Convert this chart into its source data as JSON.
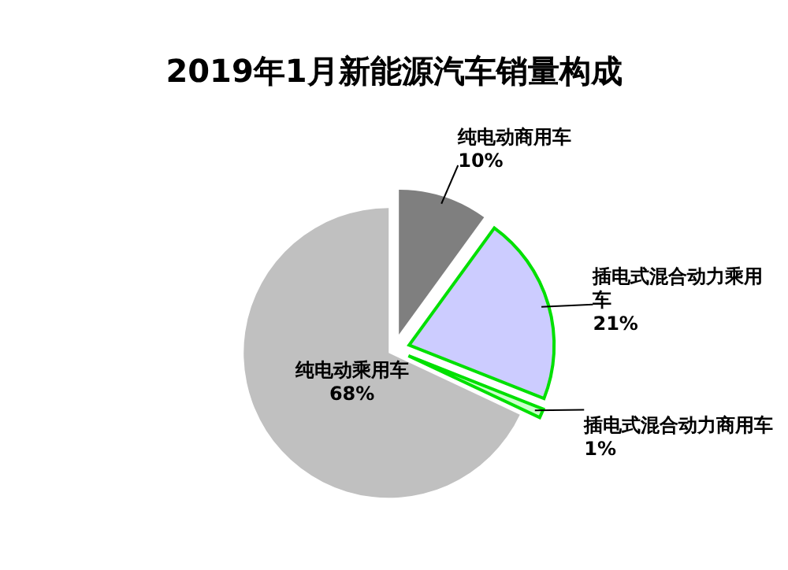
{
  "chart_data": {
    "type": "pie",
    "title": "2019年1月新能源汽车销量构成",
    "categories": [
      "纯电动商用车",
      "插电式混合动力乘用车",
      "插电式混合动力商用车",
      "纯电动乘用车"
    ],
    "values": [
      10,
      21,
      1,
      68
    ],
    "value_labels": [
      "10%",
      "21%",
      "1%",
      "68%"
    ],
    "colors": [
      "#7f7f7f",
      "#ccccff",
      "#ccffcc",
      "#c0c0c0"
    ]
  }
}
